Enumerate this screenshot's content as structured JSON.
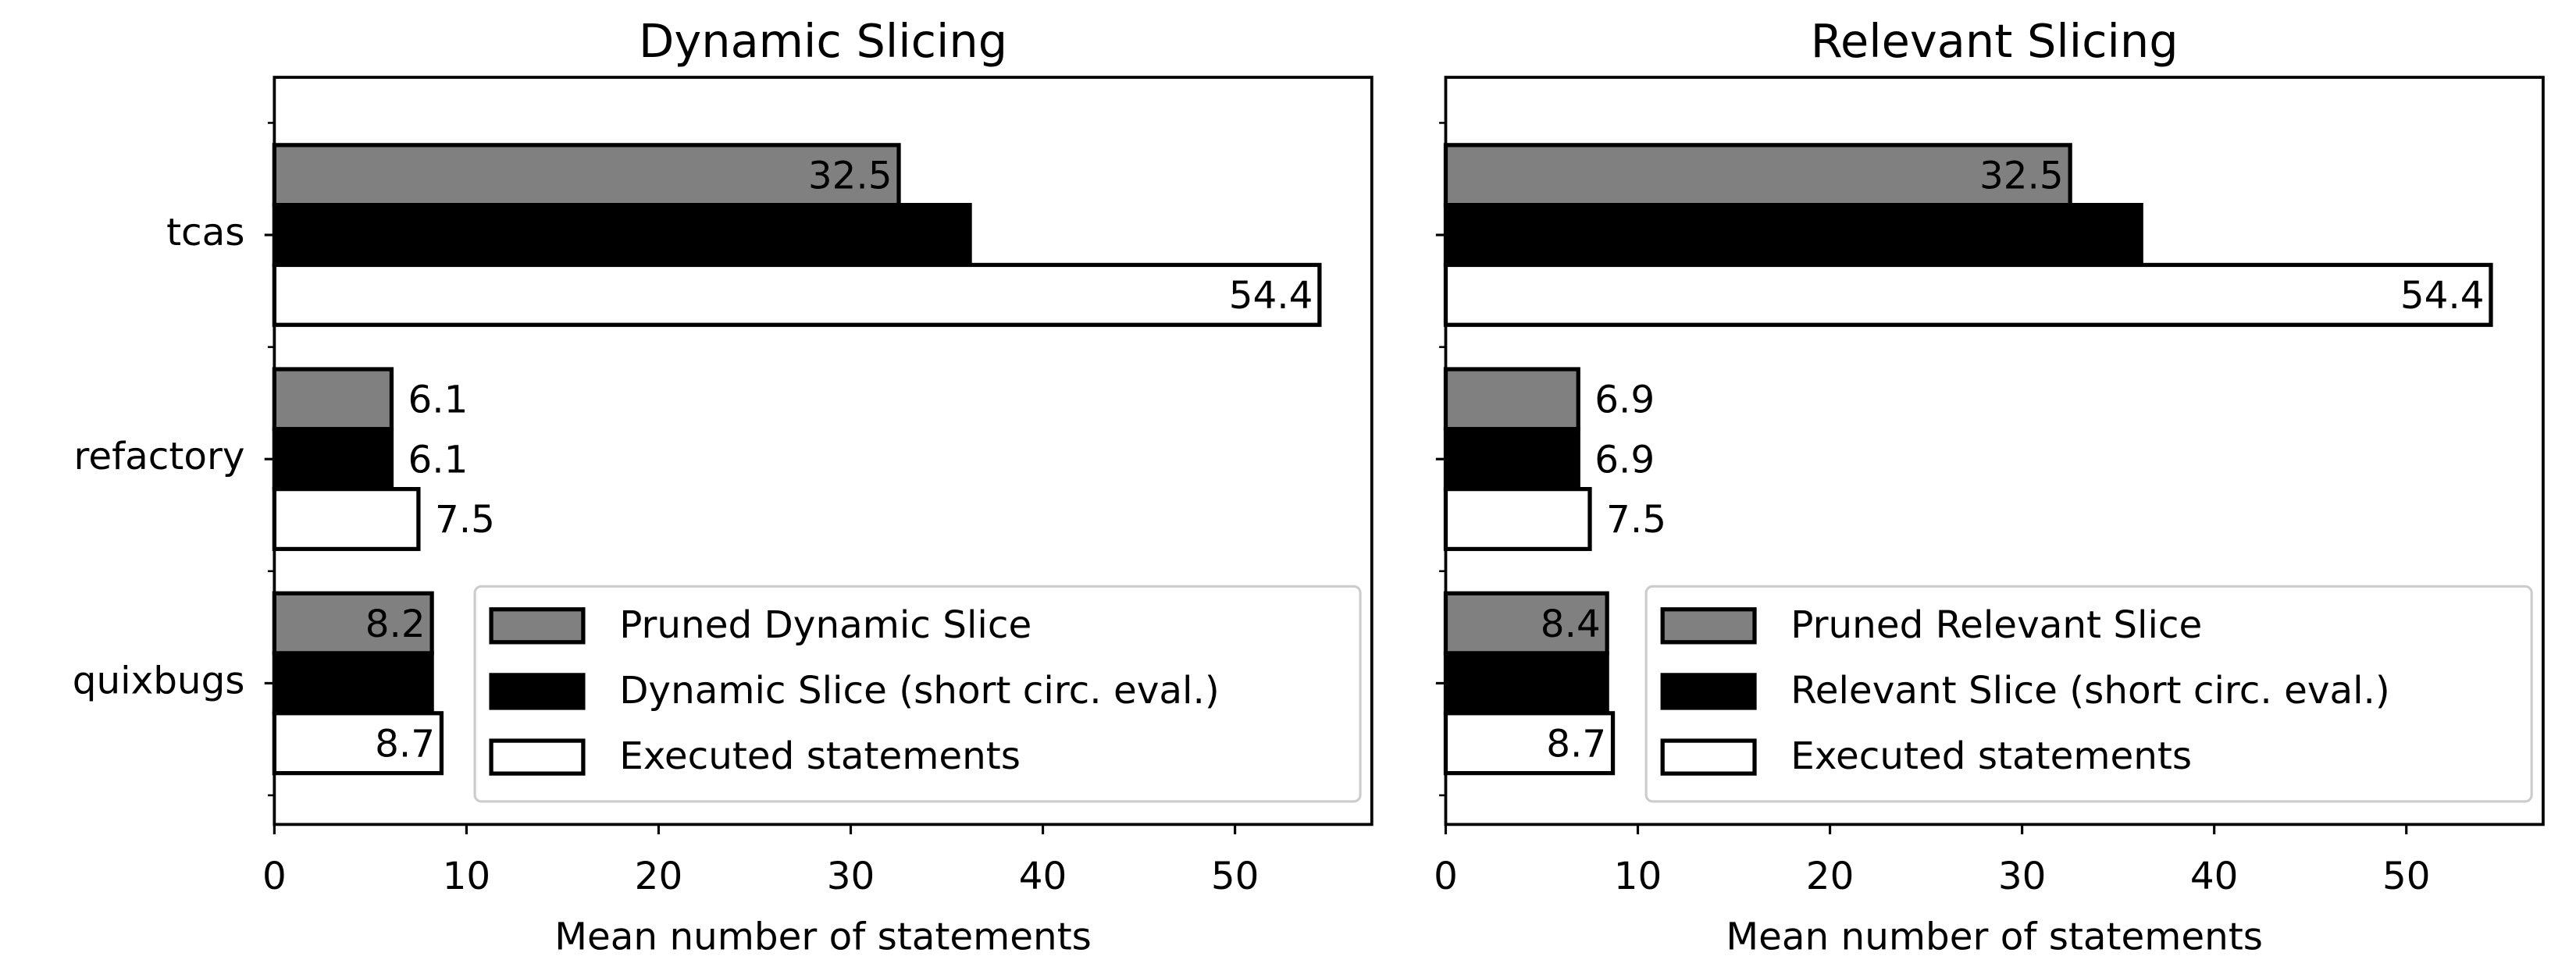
{
  "chart_data": [
    {
      "type": "barh",
      "title": "Dynamic Slicing",
      "xlabel": "Mean number of statements",
      "categories": [
        "tcas",
        "refactory",
        "quixbugs"
      ],
      "series": [
        {
          "name": "Pruned Dynamic Slice",
          "color": "#808080",
          "values": [
            32.5,
            6.1,
            8.2
          ]
        },
        {
          "name": "Dynamic Slice (short circ. eval.)",
          "color": "#000000",
          "values": [
            36.2,
            6.1,
            8.2
          ]
        },
        {
          "name": "Executed statements",
          "color": "#ffffff",
          "values": [
            54.4,
            7.5,
            8.7
          ]
        }
      ],
      "xlim": [
        0,
        57.12
      ],
      "xticks": [
        0,
        10,
        20,
        30,
        40,
        50
      ],
      "legend": "lower right"
    },
    {
      "type": "barh",
      "title": "Relevant Slicing",
      "xlabel": "Mean number of statements",
      "series": [
        {
          "name": "Pruned Relevant Slice",
          "color": "#808080",
          "values": [
            32.5,
            6.9,
            8.4
          ]
        },
        {
          "name": "Relevant Slice (short circ. eval.)",
          "color": "#000000",
          "values": [
            36.2,
            6.9,
            8.4
          ]
        },
        {
          "name": "Executed statements",
          "color": "#ffffff",
          "values": [
            54.4,
            7.5,
            8.7
          ]
        }
      ],
      "xlim": [
        0,
        57.12
      ],
      "xticks": [
        0,
        10,
        20,
        30,
        40,
        50
      ],
      "legend": "lower right"
    }
  ]
}
